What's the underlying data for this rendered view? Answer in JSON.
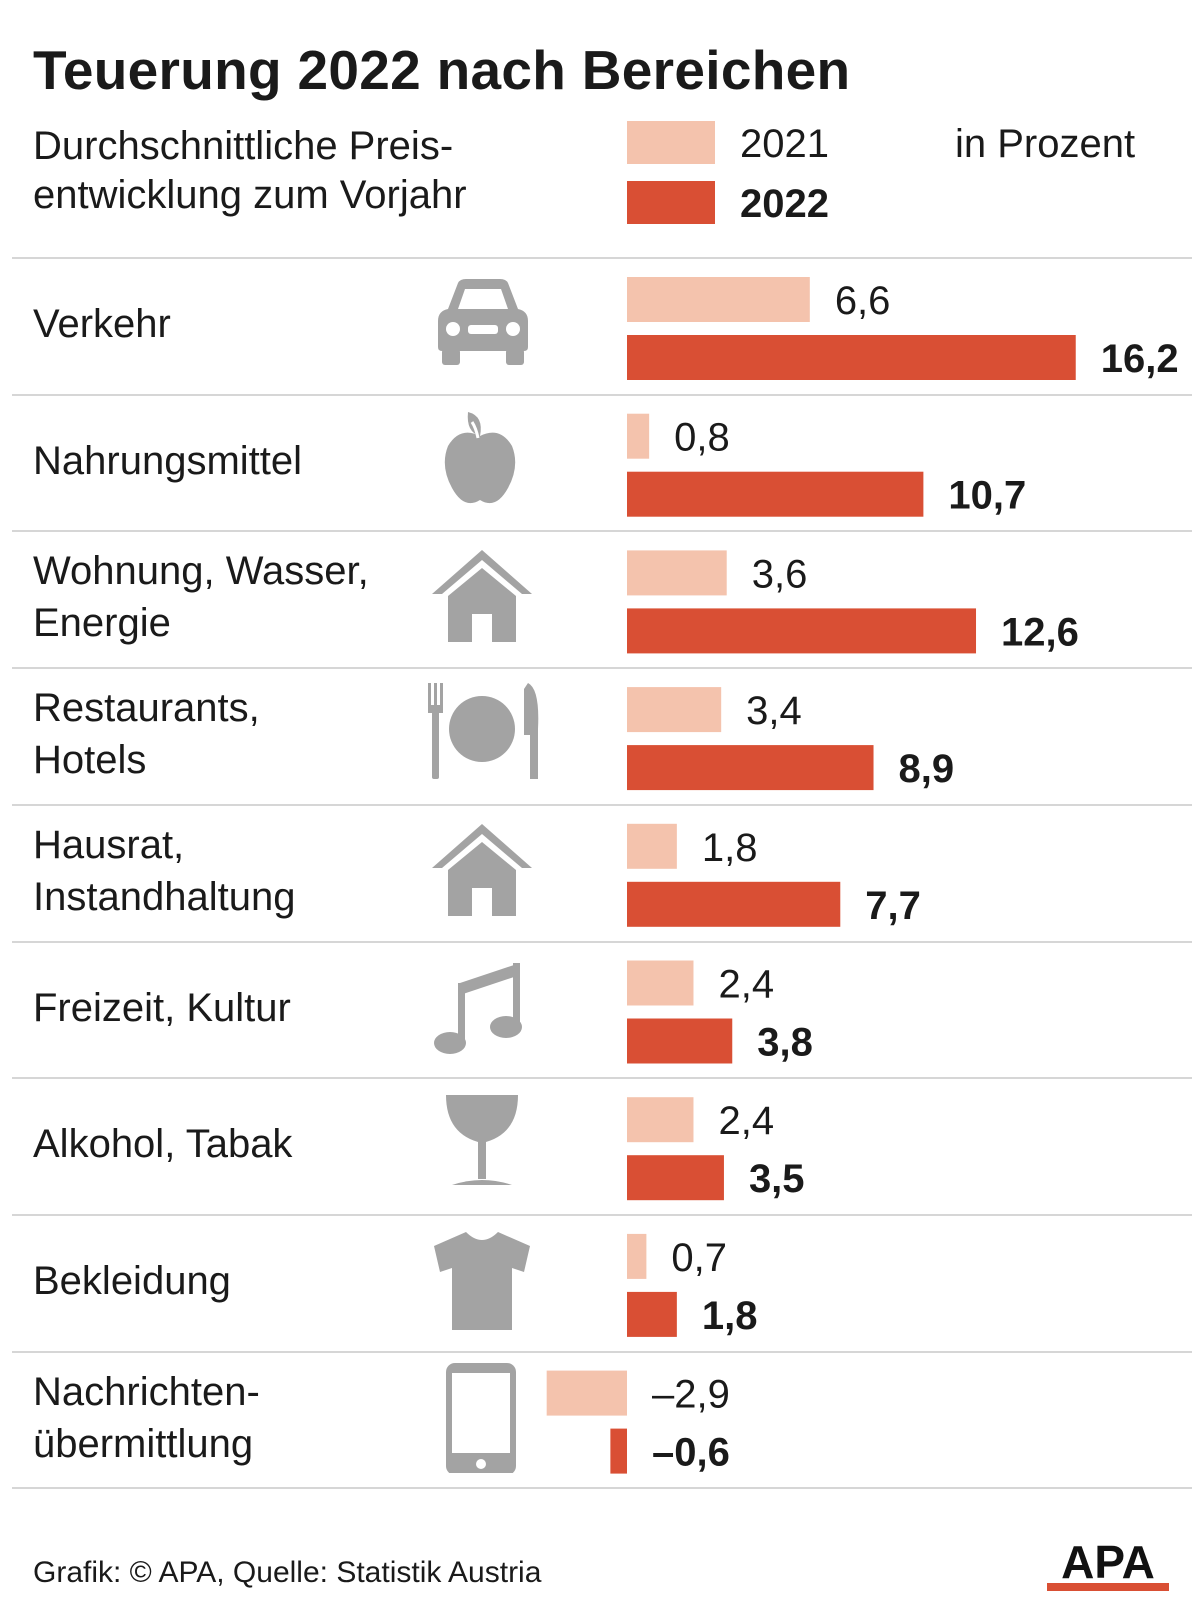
{
  "title": "Teuerung 2022 nach Bereichen",
  "subtitle_line1": "Durchschnittliche Preis-",
  "subtitle_line2": "entwicklung zum Vorjahr",
  "unit": "in Prozent",
  "footer": "Grafik: © APA, Quelle: Statistik Austria",
  "logo_text": "APA",
  "colors": {
    "y2021": "#f4c3ad",
    "y2022": "#d94f34",
    "icon": "#a3a3a3",
    "text": "#1a1a1a"
  },
  "chart_data": {
    "type": "bar",
    "orientation": "horizontal",
    "title": "Teuerung 2022 nach Bereichen",
    "ylabel": "in Prozent",
    "series": [
      {
        "name": "2021",
        "values": [
          6.6,
          0.8,
          3.6,
          3.4,
          1.8,
          2.4,
          2.4,
          0.7,
          -2.9
        ],
        "labels": [
          "6,6",
          "0,8",
          "3,6",
          "3,4",
          "1,8",
          "2,4",
          "2,4",
          "0,7",
          "–2,9"
        ]
      },
      {
        "name": "2022",
        "values": [
          16.2,
          10.7,
          12.6,
          8.9,
          7.7,
          3.8,
          3.5,
          1.8,
          -0.6
        ],
        "labels": [
          "16,2",
          "10,7",
          "12,6",
          "8,9",
          "7,7",
          "3,8",
          "3,5",
          "1,8",
          "–0,6"
        ]
      }
    ],
    "categories": [
      {
        "lines": [
          "Verkehr"
        ],
        "icon": "car-icon"
      },
      {
        "lines": [
          "Nahrungsmittel"
        ],
        "icon": "apple-icon"
      },
      {
        "lines": [
          "Wohnung, Wasser,",
          "Energie"
        ],
        "icon": "house-icon"
      },
      {
        "lines": [
          "Restaurants,",
          "Hotels"
        ],
        "icon": "cutlery-icon"
      },
      {
        "lines": [
          "Hausrat,",
          "Instandhaltung"
        ],
        "icon": "house-icon"
      },
      {
        "lines": [
          "Freizeit, Kultur"
        ],
        "icon": "music-note-icon"
      },
      {
        "lines": [
          "Alkohol, Tabak"
        ],
        "icon": "wine-glass-icon"
      },
      {
        "lines": [
          "Bekleidung"
        ],
        "icon": "tshirt-icon"
      },
      {
        "lines": [
          "Nachrichten-",
          "übermittlung"
        ],
        "icon": "smartphone-icon"
      }
    ]
  }
}
